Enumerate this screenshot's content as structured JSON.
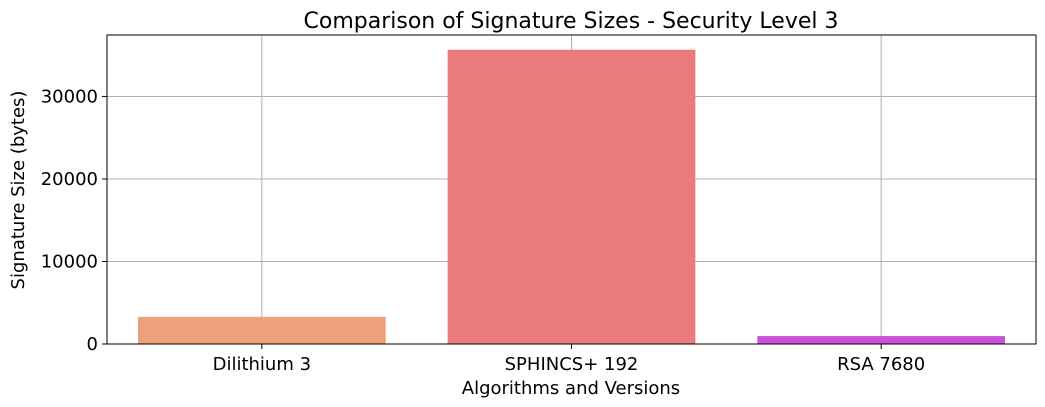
{
  "chart_data": {
    "type": "bar",
    "title": "Comparison of Signature Sizes - Security Level 3",
    "xlabel": "Algorithms and Versions",
    "ylabel": "Signature Size (bytes)",
    "categories": [
      "Dilithium 3",
      "SPHINCS+ 192",
      "RSA 7680"
    ],
    "values": [
      3293,
      35664,
      960
    ],
    "colors": [
      "#eda07c",
      "#eb7a7a",
      "#cc52dc"
    ],
    "ylim": [
      0,
      37446
    ],
    "yticks": [
      0,
      10000,
      20000,
      30000
    ],
    "grid": true,
    "legend": "none"
  }
}
